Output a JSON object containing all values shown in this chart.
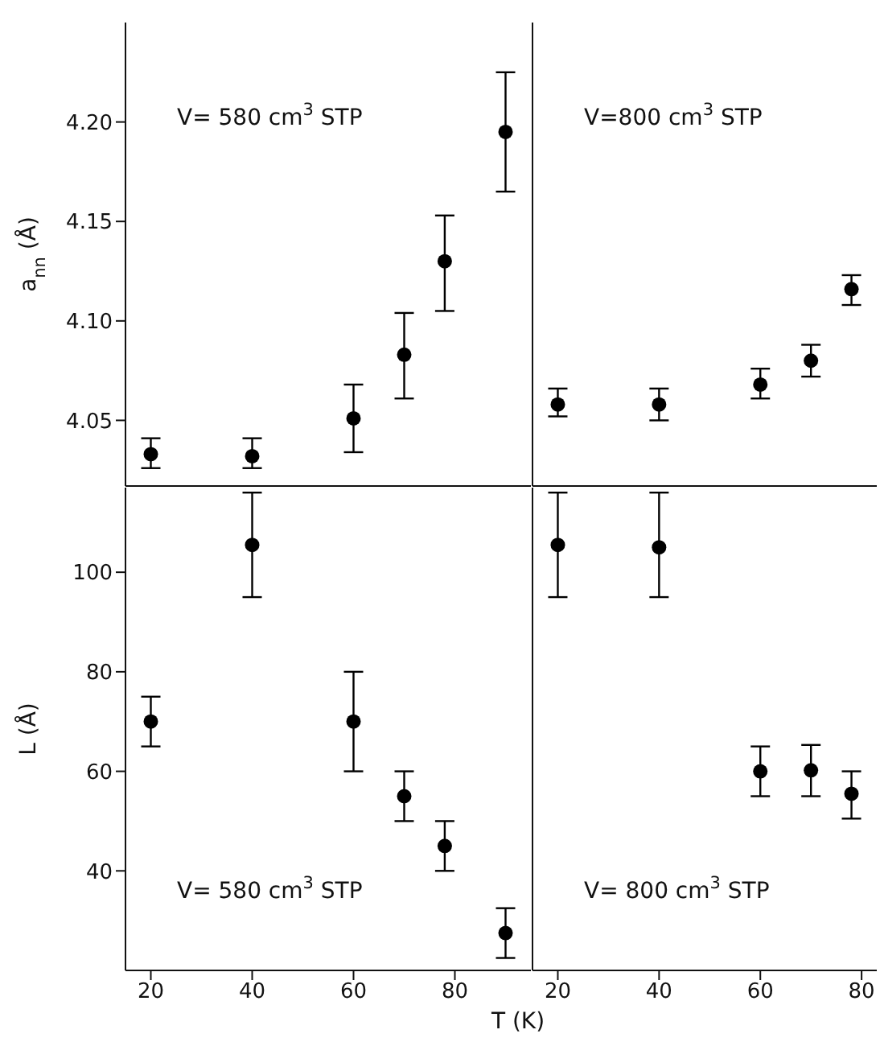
{
  "chart_data": [
    {
      "type": "scatter",
      "ylabel": "a$_{nn}$ (Å)",
      "annotations": [
        "V= 580 cm$^{3}$ STP"
      ],
      "x": [
        20,
        40,
        60,
        70,
        78,
        90
      ],
      "values": [
        4.033,
        4.032,
        4.051,
        4.083,
        4.13,
        4.195
      ],
      "errors": [
        [
          4.026,
          4.041
        ],
        [
          4.026,
          4.041
        ],
        [
          4.034,
          4.068
        ],
        [
          4.061,
          4.104
        ],
        [
          4.105,
          4.153
        ],
        [
          4.165,
          4.225
        ]
      ],
      "color": "#000000",
      "marker": "circle",
      "xlim": [
        15,
        95
      ],
      "xticks": [
        20,
        40,
        60,
        80
      ],
      "ylim": [
        4.017,
        4.25
      ],
      "yticks": [
        {
          "value": 4.05,
          "label": "4.05"
        },
        {
          "value": 4.1,
          "label": "4.10"
        },
        {
          "value": 4.15,
          "label": "4.15"
        },
        {
          "value": 4.2,
          "label": "4.20"
        }
      ],
      "tick_labels": "y",
      "grid": false,
      "legend": false
    },
    {
      "type": "scatter",
      "annotations": [
        "V=800 cm$^{3}$ STP"
      ],
      "x": [
        20,
        40,
        60,
        70,
        78
      ],
      "values": [
        4.058,
        4.058,
        4.068,
        4.08,
        4.116
      ],
      "errors": [
        [
          4.052,
          4.066
        ],
        [
          4.05,
          4.066
        ],
        [
          4.061,
          4.076
        ],
        [
          4.072,
          4.088
        ],
        [
          4.108,
          4.123
        ]
      ],
      "color": "#000000",
      "marker": "circle",
      "xlim": [
        15,
        83
      ],
      "xticks": [
        20,
        40,
        60,
        80
      ],
      "ylim": [
        4.017,
        4.25
      ],
      "yticks": [
        {
          "value": 4.05,
          "label": null
        },
        {
          "value": 4.1,
          "label": null
        },
        {
          "value": 4.15,
          "label": null
        },
        {
          "value": 4.2,
          "label": null
        }
      ],
      "tick_labels": false,
      "grid": false,
      "legend": false
    },
    {
      "type": "scatter",
      "ylabel": "L (Å)",
      "annotations": [
        "V= 580 cm$^{3}$  STP"
      ],
      "x": [
        20,
        40,
        60,
        70,
        78,
        90
      ],
      "values": [
        70,
        105.5,
        70,
        55,
        45,
        27.5
      ],
      "errors": [
        [
          65,
          75
        ],
        [
          95,
          116
        ],
        [
          60,
          80
        ],
        [
          50,
          60
        ],
        [
          40,
          50
        ],
        [
          22.5,
          32.5
        ]
      ],
      "color": "#000000",
      "marker": "circle",
      "xlim": [
        15,
        95
      ],
      "xticks": [
        20,
        40,
        60,
        80
      ],
      "ylim": [
        20,
        117
      ],
      "yticks": [
        40,
        60,
        80,
        100
      ],
      "grid": false,
      "legend": false
    },
    {
      "type": "scatter",
      "xlabel": "T (K)",
      "annotations": [
        "V= 800 cm$^{3}$  STP"
      ],
      "x": [
        20,
        40,
        60,
        70,
        78
      ],
      "values": [
        105.5,
        105,
        60,
        60.2,
        55.5
      ],
      "errors": [
        [
          95,
          116
        ],
        [
          95,
          116
        ],
        [
          55,
          65
        ],
        [
          55,
          65.3
        ],
        [
          50.5,
          60
        ]
      ],
      "color": "#000000",
      "marker": "circle",
      "xlim": [
        15,
        83
      ],
      "xticks": [
        20,
        40,
        60,
        80
      ],
      "ylim": [
        20,
        117
      ],
      "yticks": [
        40,
        60,
        80,
        100
      ],
      "tick_labels": "x",
      "grid": false,
      "legend": false
    }
  ]
}
